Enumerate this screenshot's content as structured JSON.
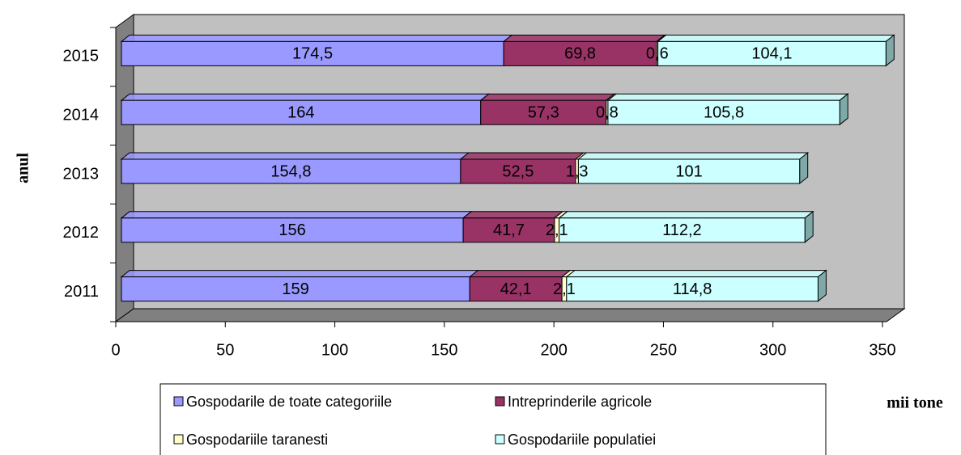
{
  "chart_data": {
    "type": "bar",
    "orientation": "horizontal",
    "stacked": true,
    "x_label": "mii tone",
    "y_label": "anul",
    "categories": [
      "2011",
      "2012",
      "2013",
      "2014",
      "2015"
    ],
    "series": [
      {
        "name": "Gospodarile de toate categoriile",
        "color": "#9999ff",
        "values": [
          159,
          156,
          154.8,
          164,
          174.5
        ],
        "value_labels": [
          "159",
          "156",
          "154,8",
          "164",
          "174,5"
        ]
      },
      {
        "name": "Intreprinderile agricole",
        "color": "#993366",
        "values": [
          42.1,
          41.7,
          52.5,
          57.3,
          69.8
        ],
        "value_labels": [
          "42,1",
          "41,7",
          "52,5",
          "57,3",
          "69,8"
        ]
      },
      {
        "name": "Gospodariile taranesti",
        "color": "#ffffcc",
        "values": [
          2.1,
          2.1,
          1.3,
          0.8,
          0.6
        ],
        "value_labels": [
          "2,1",
          "2,1",
          "1,3",
          "0,8",
          "0,6"
        ]
      },
      {
        "name": "Gospodariile populatiei",
        "color": "#ccffff",
        "values": [
          114.8,
          112.2,
          101,
          105.8,
          104.1
        ],
        "value_labels": [
          "114,8",
          "112,2",
          "101",
          "105,8",
          "104,1"
        ]
      }
    ],
    "xlim": [
      0,
      350
    ],
    "xticks": [
      0,
      50,
      100,
      150,
      200,
      250,
      300,
      350
    ]
  }
}
